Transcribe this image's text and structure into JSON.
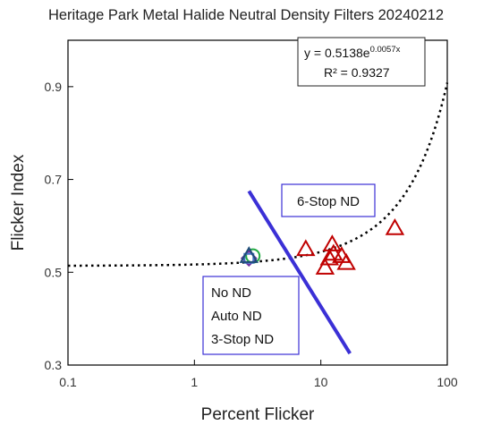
{
  "chart_data": {
    "type": "scatter",
    "title": "Heritage Park Metal Halide Neutral Density Filters 20240212",
    "xlabel": "Percent Flicker",
    "ylabel": "Flicker Index",
    "xscale": "log",
    "xlim": [
      0.1,
      100
    ],
    "ylim": [
      0.3,
      1.0
    ],
    "xticks": [
      {
        "value": 0.1,
        "label": "0.1"
      },
      {
        "value": 1,
        "label": "1"
      },
      {
        "value": 10,
        "label": "10"
      },
      {
        "value": 100,
        "label": "100"
      }
    ],
    "yticks": [
      {
        "value": 0.3,
        "label": "0.3"
      },
      {
        "value": 0.5,
        "label": "0.5"
      },
      {
        "value": 0.7,
        "label": "0.7"
      },
      {
        "value": 0.9,
        "label": "0.9"
      }
    ],
    "grid": false,
    "series": [
      {
        "marker": "triangle",
        "color": "#c00000",
        "points": [
          [
            7.6,
            0.55
          ],
          [
            10.8,
            0.51
          ],
          [
            11.7,
            0.53
          ],
          [
            12.3,
            0.56
          ],
          [
            12.6,
            0.54
          ],
          [
            14.6,
            0.535
          ],
          [
            15.9,
            0.52
          ],
          [
            38.5,
            0.595
          ]
        ]
      },
      {
        "marker": "circle",
        "color": "#22aa44",
        "points": [
          [
            2.9,
            0.535
          ]
        ]
      },
      {
        "marker": "diamond",
        "color": "#7030a0",
        "points": [
          [
            2.7,
            0.53
          ]
        ]
      },
      {
        "marker": "square",
        "color": "#4472c4",
        "points": [
          [
            2.7,
            0.53
          ]
        ]
      },
      {
        "marker": "triangle",
        "color": "#1f4e79",
        "points": [
          [
            2.7,
            0.535
          ]
        ]
      }
    ],
    "trendline": {
      "type": "exponential",
      "a": 0.5138,
      "b": 0.0057,
      "style": "dotted",
      "color": "#000000",
      "equation_text": "y = 0.5138e",
      "equation_exponent": "0.0057x",
      "r2_text": "R² = 0.9327"
    },
    "divider_line": {
      "color": "#3b30d6",
      "from": [
        2.7,
        0.675
      ],
      "to": [
        17.0,
        0.325
      ]
    },
    "annotations": {
      "right_box": "6-Stop ND",
      "left_box": [
        "No ND",
        "Auto ND",
        "3-Stop ND"
      ]
    }
  }
}
